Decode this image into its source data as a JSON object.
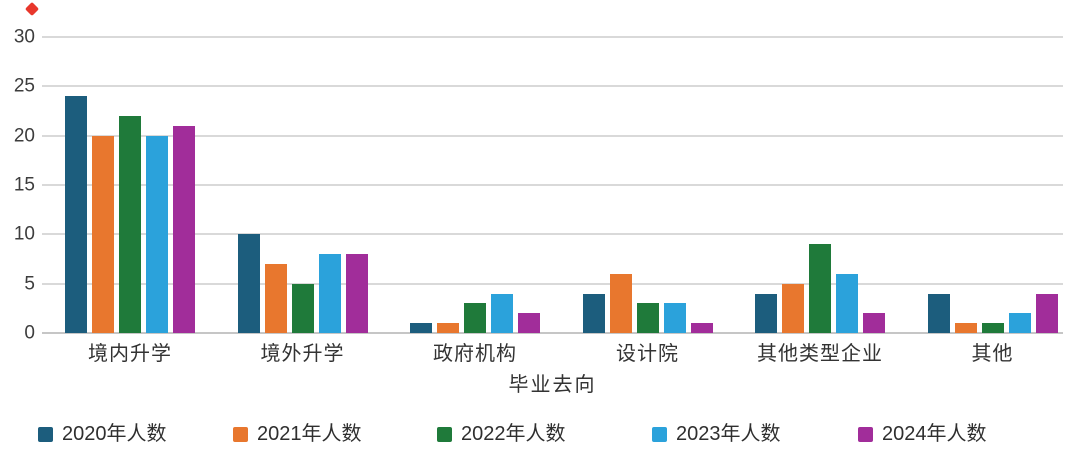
{
  "decor": {
    "red_mark_color": "#E8372C"
  },
  "chart_data": {
    "type": "bar",
    "title": "",
    "categories": [
      "境内升学",
      "境外升学",
      "政府机构",
      "设计院",
      "其他类型企业",
      "其他"
    ],
    "series": [
      {
        "name": "2020年人数",
        "color": "#1C5D7D",
        "values": [
          24,
          10,
          1,
          4,
          4,
          4
        ]
      },
      {
        "name": "2021年人数",
        "color": "#E8772E",
        "values": [
          20,
          7,
          1,
          6,
          5,
          1
        ]
      },
      {
        "name": "2022年人数",
        "color": "#1F7A3A",
        "values": [
          22,
          5,
          3,
          3,
          9,
          1
        ]
      },
      {
        "name": "2023年人数",
        "color": "#2BA2DB",
        "values": [
          20,
          8,
          4,
          3,
          6,
          2
        ]
      },
      {
        "name": "2024年人数",
        "color": "#A12D9A",
        "values": [
          21,
          8,
          2,
          1,
          2,
          4
        ]
      }
    ],
    "xlabel": "毕业去向",
    "ylabel": "",
    "ylim": [
      0,
      30
    ],
    "yticks": [
      0,
      5,
      10,
      15,
      20,
      25,
      30
    ],
    "grid": "horizontal",
    "legend_position": "bottom",
    "axis_text_color": "#3D3D3D",
    "gridline_color": "#D9D9D9",
    "baseline_color": "#C6C6C6"
  }
}
